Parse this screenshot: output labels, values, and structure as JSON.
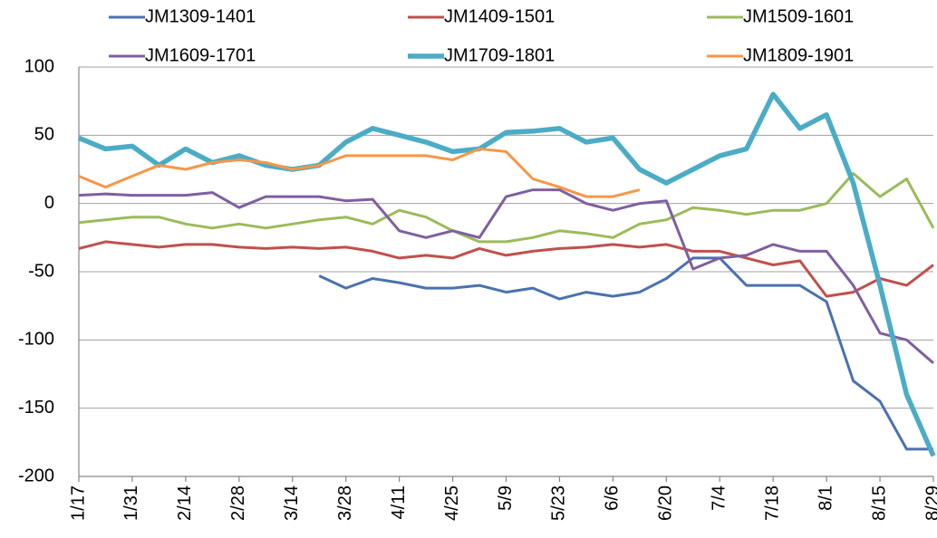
{
  "chart_data": {
    "type": "line",
    "categories": [
      "1/17",
      null,
      "1/31",
      null,
      "2/14",
      null,
      "2/28",
      null,
      "3/14",
      null,
      "3/28",
      null,
      "4/11",
      null,
      "4/25",
      null,
      "5/9",
      null,
      "5/23",
      null,
      "6/6",
      null,
      "6/20",
      null,
      "7/4",
      null,
      "7/18",
      null,
      "8/1",
      null,
      "8/15",
      null,
      "8/29"
    ],
    "series": [
      {
        "name": "JM1309-1401",
        "color": "#4a72b0",
        "width": 3,
        "values": [
          null,
          null,
          null,
          null,
          null,
          null,
          null,
          null,
          null,
          -53,
          -62,
          -55,
          -58,
          -62,
          -62,
          -60,
          -65,
          -62,
          -70,
          -65,
          -68,
          -65,
          -55,
          -40,
          -40,
          -60,
          -60,
          -60,
          -72,
          -130,
          -145,
          -180,
          -180
        ]
      },
      {
        "name": "JM1409-1501",
        "color": "#c0504d",
        "width": 3,
        "values": [
          -33,
          -28,
          -30,
          -32,
          -30,
          -30,
          -32,
          -33,
          -32,
          -33,
          -32,
          -35,
          -40,
          -38,
          -40,
          -33,
          -38,
          -35,
          -33,
          -32,
          -30,
          -32,
          -30,
          -35,
          -35,
          -40,
          -45,
          -42,
          -68,
          -65,
          -55,
          -60,
          -45
        ]
      },
      {
        "name": "JM1509-1601",
        "color": "#9bbb59",
        "width": 3,
        "values": [
          -14,
          -12,
          -10,
          -10,
          -15,
          -18,
          -15,
          -18,
          -15,
          -12,
          -10,
          -15,
          -5,
          -10,
          -20,
          -28,
          -28,
          -25,
          -20,
          -22,
          -25,
          -15,
          -12,
          -3,
          -5,
          -8,
          -5,
          -5,
          0,
          22,
          5,
          18,
          -18
        ]
      },
      {
        "name": "JM1609-1701",
        "color": "#7f5fa0",
        "width": 3,
        "values": [
          6,
          7,
          6,
          6,
          6,
          8,
          -3,
          5,
          5,
          5,
          2,
          3,
          -20,
          -25,
          -20,
          -25,
          5,
          10,
          10,
          0,
          -5,
          0,
          2,
          -48,
          -40,
          -38,
          -30,
          -35,
          -35,
          -60,
          -95,
          -100,
          -117
        ]
      },
      {
        "name": "JM1709-1801",
        "color": "#4bacc6",
        "width": 5.5,
        "values": [
          48,
          40,
          42,
          28,
          40,
          30,
          35,
          28,
          25,
          28,
          45,
          55,
          50,
          45,
          38,
          40,
          52,
          53,
          55,
          45,
          48,
          25,
          15,
          25,
          35,
          40,
          80,
          55,
          65,
          15,
          -60,
          -140,
          -185
        ]
      },
      {
        "name": "JM1809-1901",
        "color": "#f79646",
        "width": 3,
        "values": [
          20,
          12,
          20,
          28,
          25,
          30,
          32,
          30,
          25,
          28,
          35,
          35,
          35,
          35,
          32,
          40,
          38,
          18,
          12,
          5,
          5,
          10,
          null,
          null,
          null,
          null,
          null,
          null,
          null,
          null,
          null,
          null,
          null
        ]
      }
    ],
    "ylim": [
      -200,
      100
    ],
    "yticks": [
      -200,
      -150,
      -100,
      -50,
      0,
      50,
      100
    ],
    "grid": true,
    "legend": "top"
  }
}
